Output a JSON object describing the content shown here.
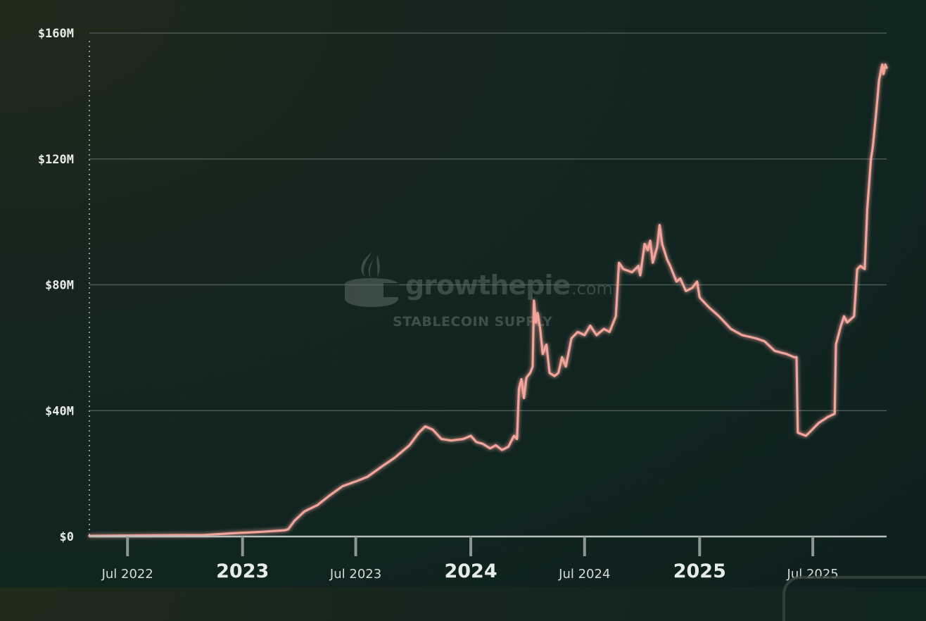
{
  "watermark": {
    "brand": "growthepie",
    "domain": ".com",
    "subtitle": "STABLECOIN SUPPLY"
  },
  "colors": {
    "line": "#f2a49a",
    "grid": "#4b5954",
    "axis": "#8c9692"
  },
  "chart_data": {
    "type": "line",
    "title": "",
    "xlabel": "",
    "ylabel": "",
    "ylim": [
      0,
      160
    ],
    "y_unit": "$M",
    "yticks": [
      {
        "value": 0,
        "label": "$0"
      },
      {
        "value": 40,
        "label": "$40M"
      },
      {
        "value": 80,
        "label": "$80M"
      },
      {
        "value": 120,
        "label": "$120M"
      },
      {
        "value": 160,
        "label": "$160M"
      }
    ],
    "xlim": [
      "2022-05-01",
      "2025-10-27"
    ],
    "xticks": [
      {
        "date": "2022-07-01",
        "label": "Jul 2022",
        "major": false
      },
      {
        "date": "2023-01-01",
        "label": "2023",
        "major": true
      },
      {
        "date": "2023-07-01",
        "label": "Jul 2023",
        "major": false
      },
      {
        "date": "2024-01-01",
        "label": "2024",
        "major": true
      },
      {
        "date": "2024-07-01",
        "label": "Jul 2024",
        "major": false
      },
      {
        "date": "2025-01-01",
        "label": "2025",
        "major": true
      },
      {
        "date": "2025-07-01",
        "label": "Jul 2025",
        "major": false
      }
    ],
    "grid": true,
    "series": [
      {
        "name": "",
        "points": [
          [
            "2022-05-01",
            0.2
          ],
          [
            "2022-11-01",
            0.5
          ],
          [
            "2022-12-15",
            1.0
          ],
          [
            "2023-02-01",
            1.5
          ],
          [
            "2023-03-10",
            2.0
          ],
          [
            "2023-03-15",
            2.3
          ],
          [
            "2023-03-25",
            5.0
          ],
          [
            "2023-04-10",
            8.0
          ],
          [
            "2023-05-01",
            10.0
          ],
          [
            "2023-05-20",
            13.0
          ],
          [
            "2023-06-10",
            16.0
          ],
          [
            "2023-07-01",
            17.5
          ],
          [
            "2023-07-20",
            19.0
          ],
          [
            "2023-08-10",
            22.0
          ],
          [
            "2023-09-01",
            25.0
          ],
          [
            "2023-09-25",
            29.0
          ],
          [
            "2023-10-10",
            33.0
          ],
          [
            "2023-10-20",
            35.0
          ],
          [
            "2023-11-01",
            34.0
          ],
          [
            "2023-11-15",
            31.0
          ],
          [
            "2023-12-01",
            30.5
          ],
          [
            "2023-12-20",
            31.0
          ],
          [
            "2024-01-01",
            32.0
          ],
          [
            "2024-01-10",
            30.0
          ],
          [
            "2024-01-20",
            29.5
          ],
          [
            "2024-02-01",
            28.0
          ],
          [
            "2024-02-10",
            29.0
          ],
          [
            "2024-02-20",
            27.5
          ],
          [
            "2024-03-01",
            28.5
          ],
          [
            "2024-03-10",
            32.0
          ],
          [
            "2024-03-15",
            31.0
          ],
          [
            "2024-03-18",
            47.0
          ],
          [
            "2024-03-22",
            50.0
          ],
          [
            "2024-03-26",
            44.0
          ],
          [
            "2024-03-30",
            50.5
          ],
          [
            "2024-04-05",
            52.0
          ],
          [
            "2024-04-09",
            54.0
          ],
          [
            "2024-04-11",
            75.0
          ],
          [
            "2024-04-14",
            68.0
          ],
          [
            "2024-04-17",
            71.0
          ],
          [
            "2024-04-21",
            66.0
          ],
          [
            "2024-04-25",
            58.0
          ],
          [
            "2024-05-01",
            61.0
          ],
          [
            "2024-05-06",
            52.0
          ],
          [
            "2024-05-14",
            51.0
          ],
          [
            "2024-05-20",
            52.0
          ],
          [
            "2024-05-26",
            57.0
          ],
          [
            "2024-06-01",
            54.0
          ],
          [
            "2024-06-10",
            63.0
          ],
          [
            "2024-06-20",
            65.0
          ],
          [
            "2024-07-01",
            64.0
          ],
          [
            "2024-07-10",
            67.0
          ],
          [
            "2024-07-20",
            64.0
          ],
          [
            "2024-08-01",
            66.0
          ],
          [
            "2024-08-10",
            65.0
          ],
          [
            "2024-08-20",
            70.0
          ],
          [
            "2024-08-25",
            87.0
          ],
          [
            "2024-09-01",
            85.0
          ],
          [
            "2024-09-15",
            84.0
          ],
          [
            "2024-09-25",
            86.0
          ],
          [
            "2024-09-28",
            83.0
          ],
          [
            "2024-10-05",
            93.0
          ],
          [
            "2024-10-10",
            91.0
          ],
          [
            "2024-10-14",
            94.0
          ],
          [
            "2024-10-18",
            87.0
          ],
          [
            "2024-10-25",
            92.0
          ],
          [
            "2024-10-29",
            99.0
          ],
          [
            "2024-11-02",
            93.0
          ],
          [
            "2024-11-10",
            88.0
          ],
          [
            "2024-11-15",
            86.0
          ],
          [
            "2024-11-25",
            81.0
          ],
          [
            "2024-12-01",
            82.0
          ],
          [
            "2024-12-10",
            78.0
          ],
          [
            "2024-12-20",
            79.0
          ],
          [
            "2024-12-28",
            81.0
          ],
          [
            "2025-01-01",
            76.0
          ],
          [
            "2025-01-15",
            73.0
          ],
          [
            "2025-02-01",
            70.0
          ],
          [
            "2025-02-20",
            66.0
          ],
          [
            "2025-03-10",
            64.0
          ],
          [
            "2025-04-01",
            63.0
          ],
          [
            "2025-04-15",
            62.0
          ],
          [
            "2025-05-01",
            59.0
          ],
          [
            "2025-05-20",
            58.0
          ],
          [
            "2025-06-01",
            57.0
          ],
          [
            "2025-06-05",
            57.0
          ],
          [
            "2025-06-07",
            33.0
          ],
          [
            "2025-06-20",
            32.0
          ],
          [
            "2025-06-30",
            34.0
          ],
          [
            "2025-07-10",
            36.0
          ],
          [
            "2025-07-25",
            38.0
          ],
          [
            "2025-08-05",
            39.0
          ],
          [
            "2025-08-07",
            61.0
          ],
          [
            "2025-08-15",
            67.0
          ],
          [
            "2025-08-20",
            70.0
          ],
          [
            "2025-08-25",
            68.0
          ],
          [
            "2025-09-05",
            70.0
          ],
          [
            "2025-09-10",
            85.0
          ],
          [
            "2025-09-15",
            86.0
          ],
          [
            "2025-09-22",
            85.0
          ],
          [
            "2025-09-26",
            104.0
          ],
          [
            "2025-10-02",
            120.0
          ],
          [
            "2025-10-05",
            124.0
          ],
          [
            "2025-10-10",
            134.0
          ],
          [
            "2025-10-15",
            145.0
          ],
          [
            "2025-10-20",
            150.0
          ],
          [
            "2025-10-22",
            147.0
          ],
          [
            "2025-10-25",
            150.0
          ],
          [
            "2025-10-27",
            149.0
          ]
        ]
      }
    ]
  }
}
